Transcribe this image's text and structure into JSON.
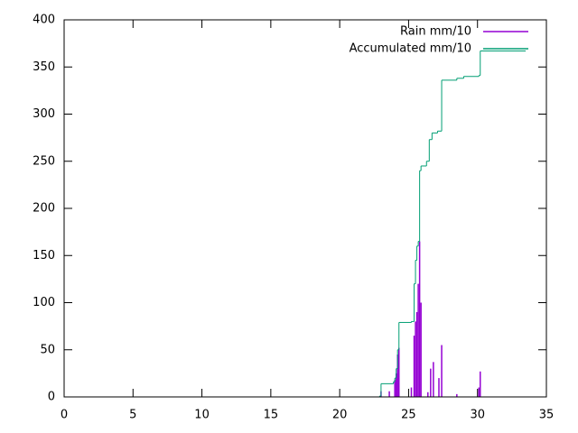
{
  "chart_data": {
    "type": "line",
    "xlim": [
      0,
      35
    ],
    "xticks": [
      0,
      5,
      10,
      15,
      20,
      25,
      30,
      35
    ],
    "ylim": [
      0,
      400
    ],
    "yticks": [
      0,
      50,
      100,
      150,
      200,
      250,
      300,
      350,
      400
    ],
    "legend": "top-right",
    "series": [
      {
        "name": "Rain mm/10",
        "color": "#9400d3",
        "style": "impulses",
        "x": [
          23.0,
          23.6,
          24.0,
          24.1,
          24.2,
          24.3,
          25.2,
          25.4,
          25.5,
          25.6,
          25.7,
          25.8,
          25.9,
          26.4,
          26.6,
          26.8,
          27.2,
          27.4,
          28.5,
          30.1,
          30.2
        ],
        "values": [
          6,
          6,
          18,
          25,
          45,
          52,
          10,
          65,
          80,
          90,
          120,
          165,
          100,
          5,
          30,
          37,
          20,
          55,
          3,
          10,
          27
        ]
      },
      {
        "name": "Accumulated mm/10",
        "color": "#009e73",
        "style": "steps",
        "x": [
          11.5,
          22.9,
          23.0,
          23.9,
          24.0,
          24.1,
          24.2,
          24.3,
          25.2,
          25.4,
          25.5,
          25.6,
          25.7,
          25.8,
          25.9,
          26.3,
          26.5,
          26.7,
          27.1,
          27.4,
          28.5,
          29.0,
          30.1,
          30.2,
          33.5
        ],
        "values": [
          0,
          1,
          14,
          16,
          20,
          30,
          50,
          79,
          80,
          120,
          145,
          160,
          165,
          240,
          245,
          250,
          273,
          280,
          282,
          336,
          338,
          340,
          341,
          367,
          367
        ]
      }
    ]
  }
}
